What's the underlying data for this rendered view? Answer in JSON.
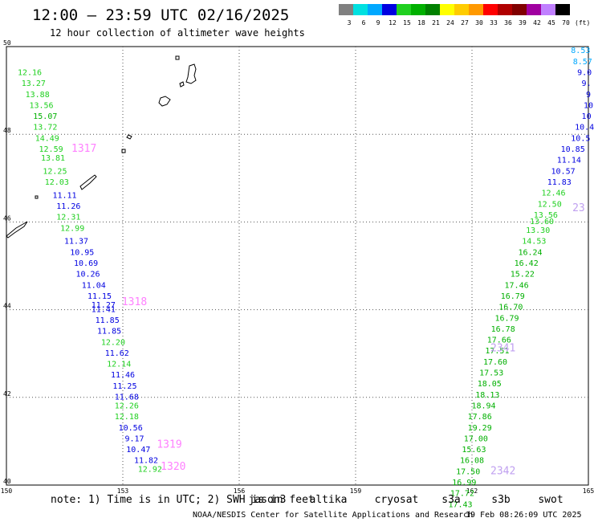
{
  "header": {
    "title": "12:00 — 23:59 UTC 02/16/2025",
    "subtitle": "12 hour collection of altimeter wave heights"
  },
  "colorbar": {
    "bins": [
      {
        "label": "3",
        "color": "#808080"
      },
      {
        "label": "6",
        "color": "#00e0e0"
      },
      {
        "label": "9",
        "color": "#00a8ff"
      },
      {
        "label": "12",
        "color": "#0000e0"
      },
      {
        "label": "15",
        "color": "#20d020"
      },
      {
        "label": "18",
        "color": "#00b000"
      },
      {
        "label": "21",
        "color": "#008000"
      },
      {
        "label": "24",
        "color": "#ffff00"
      },
      {
        "label": "27",
        "color": "#ffcc00"
      },
      {
        "label": "30",
        "color": "#ff9900"
      },
      {
        "label": "33",
        "color": "#ff0000"
      },
      {
        "label": "36",
        "color": "#b00000"
      },
      {
        "label": "39",
        "color": "#800000"
      },
      {
        "label": "42",
        "color": "#a000a0"
      },
      {
        "label": "45",
        "color": "#c080ff"
      },
      {
        "label": "70",
        "color": "#000000"
      }
    ],
    "unit": "(ft)"
  },
  "footer": {
    "note": "note:  1) Time is in UTC; 2) SWH is in feet",
    "satellites": [
      {
        "name": "jason3",
        "color": "#006400"
      },
      {
        "name": "altika",
        "color": "#ff9900"
      },
      {
        "name": "cryosat",
        "color": "#ff0000"
      },
      {
        "name": "s3a",
        "color": "#b00000"
      },
      {
        "name": "s3b",
        "color": "#c0a0f0"
      },
      {
        "name": "swot",
        "color": "#ff80ff"
      }
    ],
    "credit": "NOAA/NESDIS Center for Satellite Applications and Research",
    "timestamp": "19 Feb 08:26:09 UTC 2025"
  },
  "chart_data": {
    "type": "scatter",
    "xlim": [
      150,
      165
    ],
    "ylim": [
      40,
      50
    ],
    "x_ticks": [
      "150",
      "153",
      "156",
      "159",
      "162",
      "165"
    ],
    "y_ticks": [
      "40",
      "42",
      "44",
      "46",
      "48",
      "50"
    ],
    "grid": true,
    "track_labels": [
      {
        "text": "1317",
        "x": 152.0,
        "y": 47.6,
        "color": "#ff80ff"
      },
      {
        "text": "1318",
        "x": 153.3,
        "y": 44.1,
        "color": "#ff80ff"
      },
      {
        "text": "1319",
        "x": 154.2,
        "y": 40.85,
        "color": "#ff80ff"
      },
      {
        "text": "1320",
        "x": 154.3,
        "y": 40.35,
        "color": "#ff80ff"
      },
      {
        "text": "2341",
        "x": 162.8,
        "y": 43.05,
        "color": "#c0a0f0"
      },
      {
        "text": "2342",
        "x": 162.8,
        "y": 40.25,
        "color": "#c0a0f0"
      },
      {
        "text": "23",
        "x": 164.75,
        "y": 46.25,
        "color": "#c0a0f0"
      }
    ],
    "points": [
      {
        "x": 150.6,
        "y": 49.35,
        "v": "12.16",
        "color": "#20d020"
      },
      {
        "x": 150.7,
        "y": 49.1,
        "v": "13.27",
        "color": "#20d020"
      },
      {
        "x": 150.8,
        "y": 48.85,
        "v": "13.88",
        "color": "#20d020"
      },
      {
        "x": 150.9,
        "y": 48.6,
        "v": "13.56",
        "color": "#20d020"
      },
      {
        "x": 151.0,
        "y": 48.35,
        "v": "15.07",
        "color": "#00b000"
      },
      {
        "x": 151.0,
        "y": 48.1,
        "v": "13.72",
        "color": "#20d020"
      },
      {
        "x": 151.05,
        "y": 47.85,
        "v": "14.49",
        "color": "#20d020"
      },
      {
        "x": 151.15,
        "y": 47.6,
        "v": "12.59",
        "color": "#20d020"
      },
      {
        "x": 151.2,
        "y": 47.4,
        "v": "13.81",
        "color": "#20d020"
      },
      {
        "x": 151.25,
        "y": 47.1,
        "v": "12.25",
        "color": "#20d020"
      },
      {
        "x": 151.3,
        "y": 46.85,
        "v": "12.03",
        "color": "#20d020"
      },
      {
        "x": 151.5,
        "y": 46.55,
        "v": "11.11",
        "color": "#0000e0"
      },
      {
        "x": 151.6,
        "y": 46.3,
        "v": "11.26",
        "color": "#0000e0"
      },
      {
        "x": 151.6,
        "y": 46.05,
        "v": "12.31",
        "color": "#20d020"
      },
      {
        "x": 151.7,
        "y": 45.8,
        "v": "12.99",
        "color": "#20d020"
      },
      {
        "x": 151.8,
        "y": 45.5,
        "v": "11.37",
        "color": "#0000e0"
      },
      {
        "x": 151.95,
        "y": 45.25,
        "v": "10.95",
        "color": "#0000e0"
      },
      {
        "x": 152.05,
        "y": 45.0,
        "v": "10.69",
        "color": "#0000e0"
      },
      {
        "x": 152.1,
        "y": 44.75,
        "v": "10.26",
        "color": "#0000e0"
      },
      {
        "x": 152.25,
        "y": 44.5,
        "v": "11.04",
        "color": "#0000e0"
      },
      {
        "x": 152.4,
        "y": 44.25,
        "v": "11.15",
        "color": "#0000e0"
      },
      {
        "x": 152.5,
        "y": 44.05,
        "v": "11.27",
        "color": "#0000e0"
      },
      {
        "x": 152.5,
        "y": 43.95,
        "v": "11.41",
        "color": "#0000e0"
      },
      {
        "x": 152.6,
        "y": 43.7,
        "v": "11.85",
        "color": "#0000e0"
      },
      {
        "x": 152.65,
        "y": 43.45,
        "v": "11.85",
        "color": "#0000e0"
      },
      {
        "x": 152.75,
        "y": 43.2,
        "v": "12.20",
        "color": "#20d020"
      },
      {
        "x": 152.85,
        "y": 42.95,
        "v": "11.62",
        "color": "#0000e0"
      },
      {
        "x": 152.9,
        "y": 42.7,
        "v": "12.14",
        "color": "#20d020"
      },
      {
        "x": 153.0,
        "y": 42.45,
        "v": "11.46",
        "color": "#0000e0"
      },
      {
        "x": 153.05,
        "y": 42.2,
        "v": "11.25",
        "color": "#0000e0"
      },
      {
        "x": 153.1,
        "y": 41.95,
        "v": "11.68",
        "color": "#0000e0"
      },
      {
        "x": 153.1,
        "y": 41.75,
        "v": "12.26",
        "color": "#20d020"
      },
      {
        "x": 153.1,
        "y": 41.5,
        "v": "12.18",
        "color": "#20d020"
      },
      {
        "x": 153.2,
        "y": 41.25,
        "v": "10.56",
        "color": "#0000e0"
      },
      {
        "x": 153.3,
        "y": 41.0,
        "v": "9.17",
        "color": "#0000e0"
      },
      {
        "x": 153.4,
        "y": 40.75,
        "v": "10.47",
        "color": "#0000e0"
      },
      {
        "x": 153.6,
        "y": 40.5,
        "v": "11.82",
        "color": "#0000e0"
      },
      {
        "x": 153.7,
        "y": 40.3,
        "v": "12.92",
        "color": "#20d020"
      },
      {
        "x": 164.8,
        "y": 49.85,
        "v": "8.53",
        "color": "#00a8ff"
      },
      {
        "x": 164.85,
        "y": 49.6,
        "v": "8.57",
        "color": "#00a8ff"
      },
      {
        "x": 164.9,
        "y": 49.35,
        "v": "9.0",
        "color": "#0000e0"
      },
      {
        "x": 164.95,
        "y": 49.1,
        "v": "9.",
        "color": "#0000e0"
      },
      {
        "x": 165.0,
        "y": 48.85,
        "v": "9",
        "color": "#0000e0"
      },
      {
        "x": 165.0,
        "y": 48.6,
        "v": "10",
        "color": "#0000e0"
      },
      {
        "x": 164.95,
        "y": 48.35,
        "v": "10",
        "color": "#0000e0"
      },
      {
        "x": 164.9,
        "y": 48.1,
        "v": "10.4",
        "color": "#0000e0"
      },
      {
        "x": 164.8,
        "y": 47.85,
        "v": "10.5",
        "color": "#0000e0"
      },
      {
        "x": 164.6,
        "y": 47.6,
        "v": "10.85",
        "color": "#0000e0"
      },
      {
        "x": 164.5,
        "y": 47.35,
        "v": "11.14",
        "color": "#0000e0"
      },
      {
        "x": 164.35,
        "y": 47.1,
        "v": "10.57",
        "color": "#0000e0"
      },
      {
        "x": 164.25,
        "y": 46.85,
        "v": "11.83",
        "color": "#0000e0"
      },
      {
        "x": 164.1,
        "y": 46.6,
        "v": "12.46",
        "color": "#20d020"
      },
      {
        "x": 164.0,
        "y": 46.35,
        "v": "12.50",
        "color": "#20d020"
      },
      {
        "x": 163.9,
        "y": 46.1,
        "v": "13.56",
        "color": "#20d020"
      },
      {
        "x": 163.8,
        "y": 45.95,
        "v": "13.60",
        "color": "#20d020"
      },
      {
        "x": 163.7,
        "y": 45.75,
        "v": "13.30",
        "color": "#20d020"
      },
      {
        "x": 163.6,
        "y": 45.5,
        "v": "14.53",
        "color": "#20d020"
      },
      {
        "x": 163.5,
        "y": 45.25,
        "v": "16.24",
        "color": "#00b000"
      },
      {
        "x": 163.4,
        "y": 45.0,
        "v": "16.42",
        "color": "#00b000"
      },
      {
        "x": 163.3,
        "y": 44.75,
        "v": "15.22",
        "color": "#00b000"
      },
      {
        "x": 163.15,
        "y": 44.5,
        "v": "17.46",
        "color": "#00b000"
      },
      {
        "x": 163.05,
        "y": 44.25,
        "v": "16.79",
        "color": "#00b000"
      },
      {
        "x": 163.0,
        "y": 44.0,
        "v": "16.70",
        "color": "#00b000"
      },
      {
        "x": 162.9,
        "y": 43.75,
        "v": "16.79",
        "color": "#00b000"
      },
      {
        "x": 162.8,
        "y": 43.5,
        "v": "16.78",
        "color": "#00b000"
      },
      {
        "x": 162.7,
        "y": 43.25,
        "v": "17.66",
        "color": "#00b000"
      },
      {
        "x": 162.65,
        "y": 43.0,
        "v": "17.51",
        "color": "#00b000"
      },
      {
        "x": 162.6,
        "y": 42.75,
        "v": "17.60",
        "color": "#00b000"
      },
      {
        "x": 162.5,
        "y": 42.5,
        "v": "17.53",
        "color": "#00b000"
      },
      {
        "x": 162.45,
        "y": 42.25,
        "v": "18.05",
        "color": "#00b000"
      },
      {
        "x": 162.4,
        "y": 42.0,
        "v": "18.13",
        "color": "#00b000"
      },
      {
        "x": 162.3,
        "y": 41.75,
        "v": "18.94",
        "color": "#00b000"
      },
      {
        "x": 162.2,
        "y": 41.5,
        "v": "17.86",
        "color": "#00b000"
      },
      {
        "x": 162.2,
        "y": 41.25,
        "v": "19.29",
        "color": "#00b000"
      },
      {
        "x": 162.1,
        "y": 41.0,
        "v": "17.00",
        "color": "#00b000"
      },
      {
        "x": 162.05,
        "y": 40.75,
        "v": "15.63",
        "color": "#00b000"
      },
      {
        "x": 162.0,
        "y": 40.5,
        "v": "16.08",
        "color": "#00b000"
      },
      {
        "x": 161.9,
        "y": 40.25,
        "v": "17.50",
        "color": "#00b000"
      },
      {
        "x": 161.8,
        "y": 40.0,
        "v": "16.99",
        "color": "#00b000"
      },
      {
        "x": 161.75,
        "y": 39.75,
        "v": "17.72",
        "color": "#00b000"
      },
      {
        "x": 161.7,
        "y": 39.5,
        "v": "17.43",
        "color": "#00b000"
      }
    ]
  }
}
